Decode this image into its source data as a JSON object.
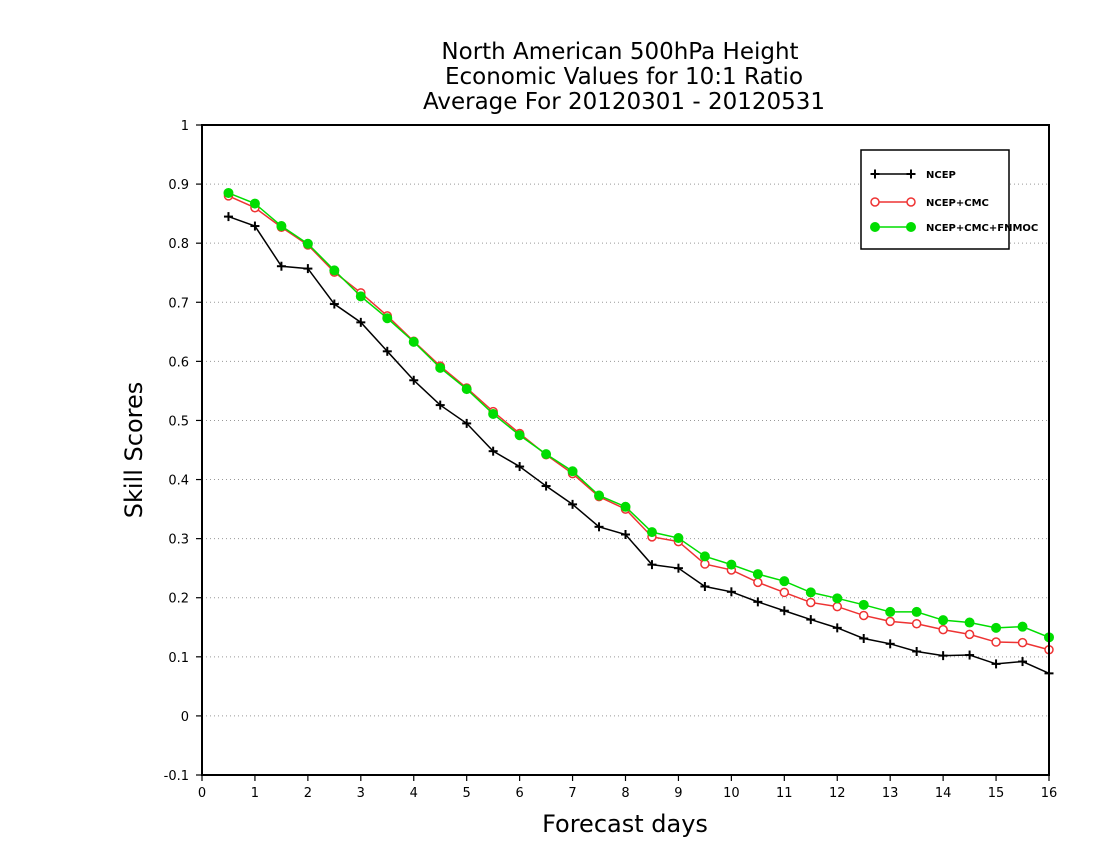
{
  "chart_data": {
    "type": "line",
    "title_lines": [
      "North American 500hPa Height",
      "Economic Values for 10:1 Ratio",
      "Average For 20120301 - 20120531"
    ],
    "xlabel": "Forecast days",
    "ylabel": "Skill Scores",
    "xlim": [
      0,
      16
    ],
    "ylim": [
      -0.1,
      1
    ],
    "x_ticks": [
      0,
      1,
      2,
      3,
      4,
      5,
      6,
      7,
      8,
      9,
      10,
      11,
      12,
      13,
      14,
      15,
      16
    ],
    "x_tick_labels": [
      "0",
      "1",
      "2",
      "3",
      "4",
      "5",
      "6",
      "7",
      "8",
      "9",
      "10",
      "11",
      "12",
      "13",
      "14",
      "15",
      "16"
    ],
    "y_ticks": [
      -0.1,
      0,
      0.1,
      0.2,
      0.3,
      0.4,
      0.5,
      0.6,
      0.7,
      0.8,
      0.9,
      1
    ],
    "y_tick_labels": [
      "-0.1",
      "0",
      "0.1",
      "0.2",
      "0.3",
      "0.4",
      "0.5",
      "0.6",
      "0.7",
      "0.8",
      "0.9",
      "1"
    ],
    "grid": "horizontal-dotted",
    "legend_position": "top-right",
    "x": [
      0.5,
      1,
      1.5,
      2,
      2.5,
      3,
      3.5,
      4,
      4.5,
      5,
      5.5,
      6,
      6.5,
      7,
      7.5,
      8,
      8.5,
      9,
      9.5,
      10,
      10.5,
      11,
      11.5,
      12,
      12.5,
      13,
      13.5,
      14,
      14.5,
      15,
      15.5,
      16
    ],
    "series": [
      {
        "name": "NCEP",
        "color": "#000000",
        "marker": "plus",
        "values": [
          0.845,
          0.829,
          0.761,
          0.757,
          0.697,
          0.666,
          0.617,
          0.568,
          0.526,
          0.495,
          0.448,
          0.422,
          0.389,
          0.358,
          0.32,
          0.307,
          0.256,
          0.25,
          0.219,
          0.21,
          0.193,
          0.178,
          0.163,
          0.149,
          0.131,
          0.122,
          0.109,
          0.102,
          0.103,
          0.088,
          0.092,
          0.072
        ]
      },
      {
        "name": "NCEP+CMC",
        "color": "#ee3333",
        "marker": "open-circle",
        "values": [
          0.88,
          0.86,
          0.827,
          0.797,
          0.751,
          0.716,
          0.677,
          0.634,
          0.592,
          0.555,
          0.515,
          0.478,
          0.442,
          0.41,
          0.371,
          0.35,
          0.303,
          0.295,
          0.257,
          0.247,
          0.226,
          0.209,
          0.192,
          0.185,
          0.17,
          0.16,
          0.156,
          0.146,
          0.138,
          0.125,
          0.124,
          0.112
        ]
      },
      {
        "name": "NCEP+CMC+FNMOC",
        "color": "#00dd00",
        "marker": "filled-circle",
        "values": [
          0.885,
          0.867,
          0.829,
          0.799,
          0.754,
          0.71,
          0.673,
          0.633,
          0.589,
          0.553,
          0.511,
          0.475,
          0.443,
          0.414,
          0.373,
          0.354,
          0.311,
          0.301,
          0.27,
          0.256,
          0.24,
          0.228,
          0.209,
          0.199,
          0.188,
          0.176,
          0.176,
          0.162,
          0.158,
          0.149,
          0.151,
          0.133
        ]
      }
    ]
  }
}
